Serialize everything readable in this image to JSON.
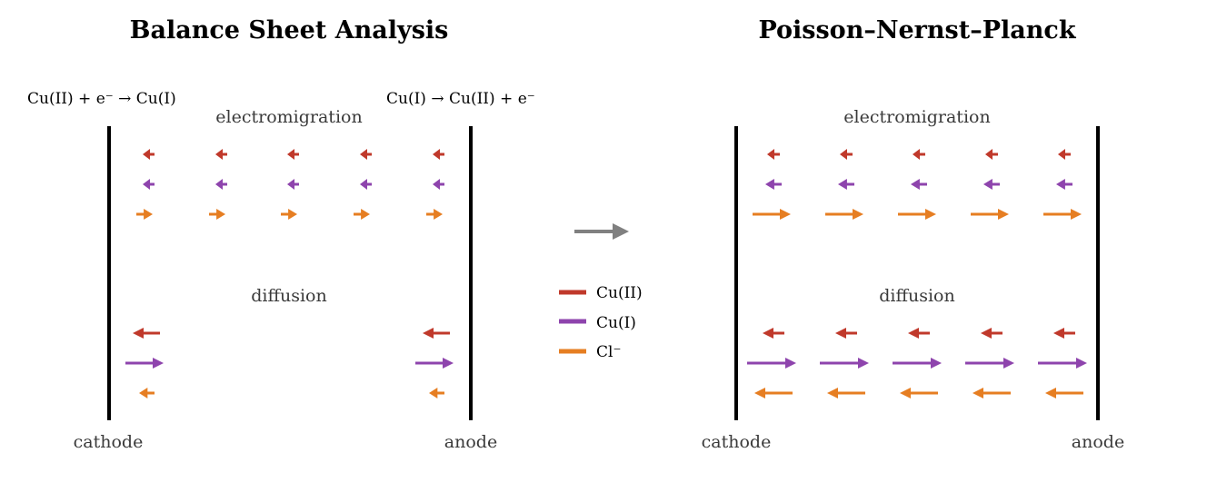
{
  "colors": {
    "cu2": "#c0392b",
    "cu1": "#8e44ad",
    "cl": "#e67e22",
    "electrode": "#000000",
    "connector": "#808080",
    "label": "#3a3a3a"
  },
  "left_panel": {
    "title": "Balance Sheet Analysis",
    "cathode_reaction": "Cu(II) + e⁻ → Cu(I)",
    "anode_reaction": "Cu(I)  →  Cu(II) + e⁻",
    "electromigration_label": "electromigration",
    "diffusion_label": "diffusion",
    "cathode_label": "cathode",
    "anode_label": "anode"
  },
  "right_panel": {
    "title": "Poisson–Nernst–Planck",
    "electromigration_label": "electromigration",
    "diffusion_label": "diffusion",
    "cathode_label": "cathode",
    "anode_label": "anode"
  },
  "legend": {
    "items": [
      {
        "label": "Cu(II)",
        "color_key": "cu2"
      },
      {
        "label": "Cu(I)",
        "color_key": "cu1"
      },
      {
        "label": "Cl⁻",
        "color_key": "cl"
      }
    ]
  },
  "connector_icon": "right-arrow-icon"
}
